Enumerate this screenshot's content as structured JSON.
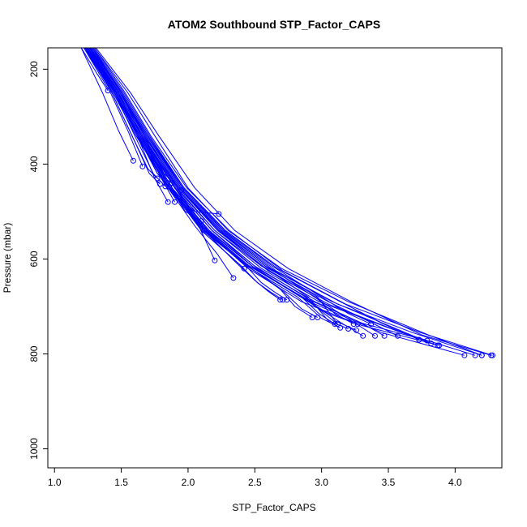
{
  "chart_data": {
    "type": "line",
    "title": "ATOM2 Southbound STP_Factor_CAPS",
    "xlabel": "STP_Factor_CAPS",
    "ylabel": "Pressure (mbar)",
    "xlim": [
      0.95,
      4.35
    ],
    "ylim": [
      1040,
      155
    ],
    "y_reversed": true,
    "grid": false,
    "xticks": [
      1.0,
      1.5,
      2.0,
      2.5,
      3.0,
      3.5,
      4.0
    ],
    "xtick_labels": [
      "1.0",
      "1.5",
      "2.0",
      "2.5",
      "3.0",
      "3.5",
      "4.0"
    ],
    "yticks": [
      200,
      400,
      600,
      800,
      1000
    ],
    "ytick_labels": [
      "200",
      "400",
      "600",
      "800",
      "1000"
    ],
    "color": "#0000ff",
    "series": [
      {
        "x": [
          1.22,
          1.45,
          1.62,
          1.86,
          2.13,
          2.45,
          2.85,
          3.3,
          3.88
        ],
        "y": [
          155,
          250,
          340,
          450,
          540,
          620,
          690,
          740,
          782
        ]
      },
      {
        "x": [
          1.24,
          1.47,
          1.65,
          1.9,
          2.18,
          2.52,
          2.95,
          3.45,
          4.07
        ],
        "y": [
          155,
          250,
          340,
          450,
          540,
          625,
          695,
          755,
          803
        ]
      },
      {
        "x": [
          1.26,
          1.49,
          1.67,
          1.93,
          2.23,
          2.6,
          3.05,
          3.6,
          4.15
        ],
        "y": [
          155,
          250,
          340,
          450,
          540,
          625,
          695,
          755,
          803
        ]
      },
      {
        "x": [
          1.28,
          1.51,
          1.7,
          1.96,
          2.27,
          2.66,
          3.12,
          3.68,
          4.2
        ],
        "y": [
          155,
          250,
          340,
          450,
          540,
          625,
          695,
          755,
          803
        ]
      },
      {
        "x": [
          1.3,
          1.53,
          1.72,
          1.99,
          2.31,
          2.71,
          3.18,
          3.74,
          4.28
        ],
        "y": [
          155,
          250,
          340,
          450,
          540,
          625,
          695,
          755,
          803
        ]
      },
      {
        "x": [
          1.25,
          1.48,
          1.66,
          1.91,
          2.2,
          2.55,
          2.98,
          3.5,
          3.87
        ],
        "y": [
          155,
          250,
          340,
          450,
          540,
          620,
          690,
          745,
          782
        ]
      },
      {
        "x": [
          1.27,
          1.5,
          1.69,
          1.95,
          2.25,
          2.62,
          3.08,
          3.5,
          3.82
        ],
        "y": [
          155,
          250,
          340,
          450,
          540,
          620,
          690,
          740,
          778
        ]
      },
      {
        "x": [
          1.23,
          1.46,
          1.63,
          1.87,
          2.14,
          2.46,
          2.86,
          3.3,
          3.79
        ],
        "y": [
          155,
          250,
          340,
          450,
          540,
          615,
          680,
          735,
          772
        ]
      },
      {
        "x": [
          1.29,
          1.52,
          1.71,
          1.97,
          2.28,
          2.67,
          3.14,
          3.45,
          3.73
        ],
        "y": [
          155,
          250,
          340,
          450,
          540,
          620,
          690,
          735,
          770
        ]
      },
      {
        "x": [
          1.26,
          1.49,
          1.68,
          1.94,
          2.24,
          2.6,
          3.05,
          3.38,
          3.57
        ],
        "y": [
          155,
          250,
          340,
          450,
          540,
          620,
          690,
          735,
          762
        ]
      },
      {
        "x": [
          1.25,
          1.47,
          1.65,
          1.9,
          2.18,
          2.52,
          2.95,
          3.3,
          3.47
        ],
        "y": [
          155,
          250,
          340,
          450,
          540,
          620,
          690,
          735,
          762
        ]
      },
      {
        "x": [
          1.27,
          1.5,
          1.69,
          1.96,
          2.26,
          2.62,
          3.0,
          3.25,
          3.4
        ],
        "y": [
          155,
          250,
          340,
          450,
          540,
          620,
          690,
          735,
          762
        ]
      },
      {
        "x": [
          1.24,
          1.46,
          1.64,
          1.88,
          2.16,
          2.5,
          2.9,
          3.15,
          3.31
        ],
        "y": [
          155,
          250,
          340,
          450,
          540,
          620,
          690,
          735,
          762
        ]
      },
      {
        "x": [
          1.28,
          1.51,
          1.7,
          1.97,
          2.28,
          2.63,
          3.0,
          3.2,
          3.37
        ],
        "y": [
          155,
          250,
          340,
          450,
          540,
          615,
          680,
          715,
          737
        ]
      },
      {
        "x": [
          1.23,
          1.45,
          1.63,
          1.87,
          2.14,
          2.46,
          2.85,
          3.05,
          3.27
        ],
        "y": [
          155,
          250,
          340,
          450,
          540,
          615,
          680,
          715,
          737
        ]
      },
      {
        "x": [
          1.26,
          1.48,
          1.66,
          1.92,
          2.2,
          2.55,
          2.95,
          3.1,
          3.24
        ],
        "y": [
          155,
          250,
          340,
          450,
          540,
          615,
          680,
          715,
          737
        ]
      },
      {
        "x": [
          1.25,
          1.47,
          1.65,
          1.9,
          2.18,
          2.5,
          2.88,
          3.02,
          3.12
        ],
        "y": [
          155,
          250,
          340,
          450,
          540,
          615,
          680,
          715,
          737
        ]
      },
      {
        "x": [
          1.24,
          1.46,
          1.64,
          1.88,
          2.15,
          2.48,
          2.85,
          2.98,
          3.1
        ],
        "y": [
          155,
          250,
          340,
          450,
          540,
          615,
          680,
          715,
          737
        ]
      },
      {
        "x": [
          1.27,
          1.5,
          1.68,
          1.94,
          2.23,
          2.58,
          2.97,
          3.1,
          3.26
        ],
        "y": [
          155,
          250,
          340,
          450,
          540,
          615,
          680,
          730,
          750
        ]
      },
      {
        "x": [
          1.23,
          1.45,
          1.62,
          1.86,
          2.12,
          2.44,
          2.82,
          3.0,
          3.14
        ],
        "y": [
          155,
          250,
          340,
          450,
          540,
          615,
          680,
          725,
          745
        ]
      },
      {
        "x": [
          1.26,
          1.49,
          1.67,
          1.93,
          2.22,
          2.56,
          2.9,
          3.05,
          3.2
        ],
        "y": [
          155,
          250,
          340,
          450,
          540,
          615,
          680,
          730,
          747
        ]
      },
      {
        "x": [
          1.24,
          1.46,
          1.63,
          1.87,
          2.13,
          2.45,
          2.72,
          2.85,
          2.97
        ],
        "y": [
          155,
          250,
          340,
          450,
          540,
          615,
          670,
          705,
          723
        ]
      },
      {
        "x": [
          1.22,
          1.44,
          1.61,
          1.85,
          2.11,
          2.42,
          2.68,
          2.8,
          2.93
        ],
        "y": [
          155,
          250,
          340,
          450,
          540,
          610,
          660,
          700,
          723
        ]
      },
      {
        "x": [
          1.25,
          1.47,
          1.65,
          1.9,
          2.15,
          2.42,
          2.55,
          2.65,
          2.74
        ],
        "y": [
          155,
          250,
          340,
          450,
          540,
          610,
          650,
          670,
          686
        ]
      },
      {
        "x": [
          1.23,
          1.45,
          1.62,
          1.86,
          2.1,
          2.38,
          2.52,
          2.62,
          2.71
        ],
        "y": [
          155,
          250,
          340,
          450,
          540,
          610,
          650,
          670,
          686
        ]
      },
      {
        "x": [
          1.26,
          1.48,
          1.66,
          1.9,
          2.12,
          2.35,
          2.5,
          2.6,
          2.69
        ],
        "y": [
          155,
          250,
          340,
          450,
          540,
          605,
          645,
          668,
          686
        ]
      },
      {
        "x": [
          1.24,
          1.46,
          1.64,
          1.88,
          2.1,
          2.3,
          2.42
        ],
        "y": [
          155,
          250,
          340,
          450,
          540,
          590,
          620
        ]
      },
      {
        "x": [
          1.22,
          1.44,
          1.61,
          1.85,
          2.05,
          2.22,
          2.34
        ],
        "y": [
          155,
          250,
          340,
          450,
          530,
          590,
          640
        ]
      },
      {
        "x": [
          1.27,
          1.5,
          1.68,
          1.92,
          2.08,
          2.2
        ],
        "y": [
          155,
          250,
          340,
          450,
          530,
          603
        ]
      },
      {
        "x": [
          1.25,
          1.47,
          1.65,
          1.88,
          2.0,
          2.12
        ],
        "y": [
          155,
          250,
          340,
          450,
          500,
          540
        ]
      },
      {
        "x": [
          1.23,
          1.45,
          1.62,
          1.85,
          2.05,
          2.23
        ],
        "y": [
          155,
          250,
          340,
          450,
          500,
          505
        ]
      },
      {
        "x": [
          1.24,
          1.46,
          1.64,
          1.87,
          1.98,
          2.1
        ],
        "y": [
          155,
          250,
          340,
          450,
          500,
          520
        ]
      },
      {
        "x": [
          1.26,
          1.48,
          1.62,
          1.75,
          1.85
        ],
        "y": [
          155,
          250,
          340,
          430,
          480
        ]
      },
      {
        "x": [
          1.22,
          1.42,
          1.55,
          1.66
        ],
        "y": [
          155,
          250,
          330,
          405
        ]
      },
      {
        "x": [
          1.2,
          1.36,
          1.48,
          1.59
        ],
        "y": [
          155,
          250,
          330,
          393
        ]
      },
      {
        "x": [
          1.28,
          1.5,
          1.65,
          1.8,
          1.9
        ],
        "y": [
          155,
          250,
          340,
          430,
          480
        ]
      },
      {
        "x": [
          1.25,
          1.45,
          1.6,
          1.74,
          1.83
        ],
        "y": [
          155,
          250,
          340,
          420,
          447
        ]
      },
      {
        "x": [
          1.23,
          1.43,
          1.58,
          1.71,
          1.79
        ],
        "y": [
          155,
          250,
          340,
          420,
          442
        ]
      },
      {
        "x": [
          1.27,
          1.48,
          1.63,
          1.77,
          1.86
        ],
        "y": [
          155,
          250,
          340,
          420,
          448
        ]
      },
      {
        "x": [
          1.29,
          1.5,
          1.67,
          1.82,
          1.95
        ],
        "y": [
          155,
          250,
          340,
          420,
          455
        ]
      },
      {
        "x": [
          1.24,
          1.43,
          1.58,
          1.7,
          1.77
        ],
        "y": [
          155,
          250,
          340,
          410,
          430
        ]
      },
      {
        "x": [
          1.26,
          1.46,
          1.62,
          1.77,
          1.88
        ],
        "y": [
          155,
          250,
          340,
          420,
          440
        ]
      },
      {
        "x": [
          1.2,
          1.32,
          1.4
        ],
        "y": [
          155,
          210,
          245
        ]
      },
      {
        "x": [
          1.3,
          1.55,
          1.75,
          2.0,
          2.3,
          2.7,
          3.2,
          3.8,
          4.2
        ],
        "y": [
          155,
          250,
          340,
          450,
          540,
          620,
          690,
          760,
          803
        ]
      },
      {
        "x": [
          1.31,
          1.57,
          1.78,
          2.05,
          2.35,
          2.75,
          3.22,
          3.75,
          4.27
        ],
        "y": [
          155,
          250,
          340,
          450,
          540,
          620,
          690,
          760,
          803
        ]
      }
    ]
  }
}
